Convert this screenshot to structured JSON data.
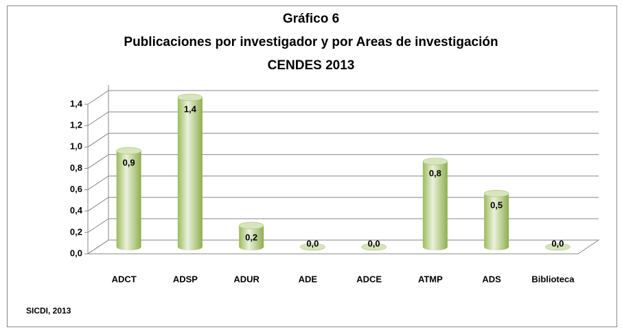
{
  "chart_data": {
    "type": "bar",
    "title": "Gráfico 6",
    "subtitle": "Publicaciones por investigador y por Areas de investigación",
    "subtitle2": "CENDES 2013",
    "source": "SICDI, 2013",
    "categories": [
      "ADCT",
      "ADSP",
      "ADUR",
      "ADE",
      "ADCE",
      "ATMP",
      "ADS",
      "Biblioteca"
    ],
    "values": [
      0.9,
      1.4,
      0.2,
      0.0,
      0.0,
      0.8,
      0.5,
      0.0
    ],
    "value_labels": [
      "0,9",
      "1,4",
      "0,2",
      "0,0",
      "0,0",
      "0,8",
      "0,5",
      "0,0"
    ],
    "color": "#c3d69b",
    "ylim": [
      0,
      1.4
    ],
    "yticks": [
      {
        "value": 0,
        "label": "0,0"
      },
      {
        "value": 0.2,
        "label": "0,2"
      },
      {
        "value": 0.4,
        "label": "0,4"
      },
      {
        "value": 0.6,
        "label": "0,6"
      },
      {
        "value": 0.8,
        "label": "0,8"
      },
      {
        "value": 1.0,
        "label": "1,0"
      },
      {
        "value": 1.2,
        "label": "1,2"
      },
      {
        "value": 1.4,
        "label": "1,4"
      }
    ],
    "grid": true
  }
}
